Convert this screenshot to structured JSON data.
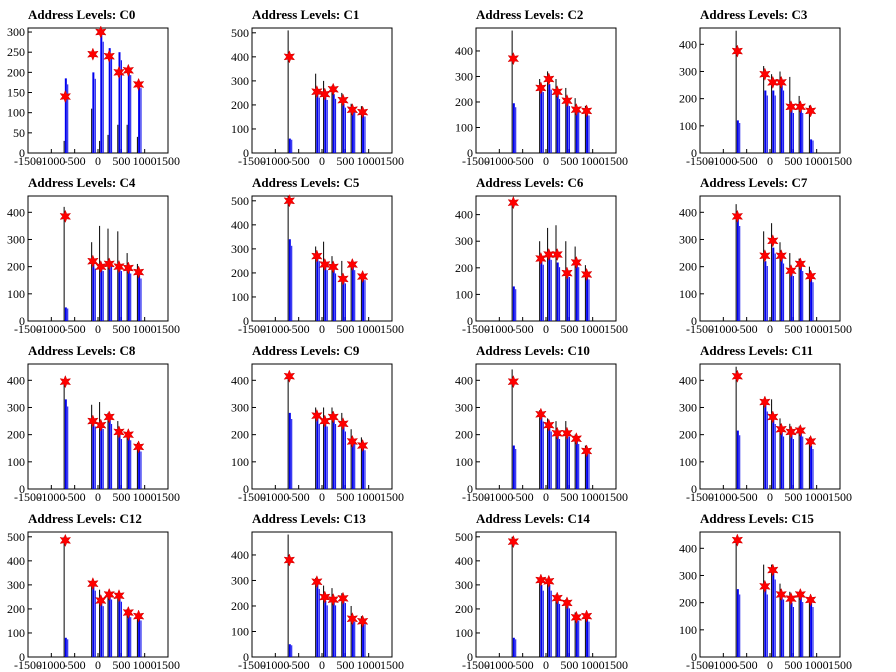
{
  "chart_data": [
    {
      "type": "histogram",
      "title": "Address Levels: C0",
      "xlim": [
        -1500,
        1500
      ],
      "ylim": [
        0,
        310
      ],
      "xticks": [
        -1500,
        -1000,
        -500,
        0,
        500,
        1000,
        1500
      ],
      "yticks": [
        0,
        50,
        100,
        150,
        200,
        250,
        300
      ],
      "peaks": [
        {
          "x": -700,
          "blue": 185,
          "black": 30,
          "marker": 140
        },
        {
          "x": -110,
          "blue": 200,
          "black": 110,
          "marker": 245
        },
        {
          "x": 60,
          "blue": 300,
          "black": 30,
          "marker": 300
        },
        {
          "x": 240,
          "blue": 260,
          "black": 45,
          "marker": 240
        },
        {
          "x": 450,
          "blue": 250,
          "black": 70,
          "marker": 200
        },
        {
          "x": 650,
          "blue": 210,
          "black": 70,
          "marker": 205
        },
        {
          "x": 870,
          "blue": 175,
          "black": 40,
          "marker": 170
        }
      ]
    },
    {
      "type": "histogram",
      "title": "Address Levels: C1",
      "xlim": [
        -1500,
        1500
      ],
      "ylim": [
        0,
        520
      ],
      "xticks": [
        -1500,
        -1000,
        -500,
        0,
        500,
        1000,
        1500
      ],
      "yticks": [
        0,
        100,
        200,
        300,
        400,
        500
      ],
      "peaks": [
        {
          "x": -700,
          "blue": 60,
          "black": 510,
          "marker": 400
        },
        {
          "x": -110,
          "blue": 250,
          "black": 330,
          "marker": 255
        },
        {
          "x": 60,
          "blue": 240,
          "black": 300,
          "marker": 245
        },
        {
          "x": 240,
          "blue": 245,
          "black": 280,
          "marker": 265
        },
        {
          "x": 450,
          "blue": 205,
          "black": 250,
          "marker": 220
        },
        {
          "x": 650,
          "blue": 190,
          "black": 205,
          "marker": 180
        },
        {
          "x": 870,
          "blue": 165,
          "black": 195,
          "marker": 170
        }
      ]
    },
    {
      "type": "histogram",
      "title": "Address Levels: C2",
      "xlim": [
        -1500,
        1500
      ],
      "ylim": [
        0,
        490
      ],
      "xticks": [
        -1500,
        -1000,
        -500,
        0,
        500,
        1000,
        1500
      ],
      "yticks": [
        0,
        100,
        200,
        300,
        400
      ],
      "peaks": [
        {
          "x": -700,
          "blue": 195,
          "black": 480,
          "marker": 370
        },
        {
          "x": -110,
          "blue": 260,
          "black": 290,
          "marker": 255
        },
        {
          "x": 60,
          "blue": 270,
          "black": 320,
          "marker": 290
        },
        {
          "x": 240,
          "blue": 230,
          "black": 290,
          "marker": 240
        },
        {
          "x": 450,
          "blue": 200,
          "black": 255,
          "marker": 205
        },
        {
          "x": 650,
          "blue": 180,
          "black": 215,
          "marker": 170
        },
        {
          "x": 870,
          "blue": 160,
          "black": 185,
          "marker": 165
        }
      ]
    },
    {
      "type": "histogram",
      "title": "Address Levels: C3",
      "xlim": [
        -1500,
        1500
      ],
      "ylim": [
        0,
        460
      ],
      "xticks": [
        -1500,
        -1000,
        -500,
        0,
        500,
        1000,
        1500
      ],
      "yticks": [
        0,
        100,
        200,
        300,
        400
      ],
      "peaks": [
        {
          "x": -700,
          "blue": 120,
          "black": 450,
          "marker": 375
        },
        {
          "x": -110,
          "blue": 230,
          "black": 320,
          "marker": 290
        },
        {
          "x": 60,
          "blue": 230,
          "black": 290,
          "marker": 260
        },
        {
          "x": 240,
          "blue": 250,
          "black": 300,
          "marker": 260
        },
        {
          "x": 450,
          "blue": 160,
          "black": 280,
          "marker": 170
        },
        {
          "x": 650,
          "blue": 160,
          "black": 210,
          "marker": 170
        },
        {
          "x": 870,
          "blue": 50,
          "black": 175,
          "marker": 155
        }
      ]
    },
    {
      "type": "histogram",
      "title": "Address Levels: C4",
      "xlim": [
        -1500,
        1500
      ],
      "ylim": [
        0,
        460
      ],
      "xticks": [
        -1500,
        -1000,
        -500,
        0,
        500,
        1000,
        1500
      ],
      "yticks": [
        0,
        100,
        200,
        300,
        400
      ],
      "peaks": [
        {
          "x": -700,
          "blue": 50,
          "black": 420,
          "marker": 385
        },
        {
          "x": -110,
          "blue": 210,
          "black": 290,
          "marker": 220
        },
        {
          "x": 60,
          "blue": 200,
          "black": 350,
          "marker": 200
        },
        {
          "x": 240,
          "blue": 220,
          "black": 340,
          "marker": 210
        },
        {
          "x": 450,
          "blue": 200,
          "black": 330,
          "marker": 200
        },
        {
          "x": 650,
          "blue": 190,
          "black": 250,
          "marker": 195
        },
        {
          "x": 870,
          "blue": 170,
          "black": 210,
          "marker": 180
        }
      ]
    },
    {
      "type": "histogram",
      "title": "Address Levels: C5",
      "xlim": [
        -1500,
        1500
      ],
      "ylim": [
        0,
        520
      ],
      "xticks": [
        -1500,
        -1000,
        -500,
        0,
        500,
        1000,
        1500
      ],
      "yticks": [
        0,
        100,
        200,
        300,
        400,
        500
      ],
      "peaks": [
        {
          "x": -700,
          "blue": 340,
          "black": 520,
          "marker": 500
        },
        {
          "x": -110,
          "blue": 270,
          "black": 310,
          "marker": 270
        },
        {
          "x": 60,
          "blue": 230,
          "black": 330,
          "marker": 235
        },
        {
          "x": 240,
          "blue": 215,
          "black": 270,
          "marker": 225
        },
        {
          "x": 450,
          "blue": 170,
          "black": 250,
          "marker": 175
        },
        {
          "x": 650,
          "blue": 230,
          "black": 240,
          "marker": 235
        },
        {
          "x": 870,
          "blue": 185,
          "black": 195,
          "marker": 185
        }
      ]
    },
    {
      "type": "histogram",
      "title": "Address Levels: C6",
      "xlim": [
        -1500,
        1500
      ],
      "ylim": [
        0,
        470
      ],
      "xticks": [
        -1500,
        -1000,
        -500,
        0,
        500,
        1000,
        1500
      ],
      "yticks": [
        0,
        100,
        200,
        300,
        400
      ],
      "peaks": [
        {
          "x": -700,
          "blue": 130,
          "black": 450,
          "marker": 445
        },
        {
          "x": -110,
          "blue": 230,
          "black": 300,
          "marker": 235
        },
        {
          "x": 60,
          "blue": 250,
          "black": 350,
          "marker": 250
        },
        {
          "x": 240,
          "blue": 220,
          "black": 360,
          "marker": 250
        },
        {
          "x": 450,
          "blue": 180,
          "black": 300,
          "marker": 180
        },
        {
          "x": 650,
          "blue": 220,
          "black": 280,
          "marker": 220
        },
        {
          "x": 870,
          "blue": 170,
          "black": 210,
          "marker": 175
        }
      ]
    },
    {
      "type": "histogram",
      "title": "Address Levels: C7",
      "xlim": [
        -1500,
        1500
      ],
      "ylim": [
        0,
        460
      ],
      "xticks": [
        -1500,
        -1000,
        -500,
        0,
        500,
        1000,
        1500
      ],
      "yticks": [
        0,
        100,
        200,
        300,
        400
      ],
      "peaks": [
        {
          "x": -700,
          "blue": 380,
          "black": 430,
          "marker": 385
        },
        {
          "x": -110,
          "blue": 220,
          "black": 330,
          "marker": 240
        },
        {
          "x": 60,
          "blue": 270,
          "black": 360,
          "marker": 295
        },
        {
          "x": 240,
          "blue": 230,
          "black": 290,
          "marker": 240
        },
        {
          "x": 450,
          "blue": 180,
          "black": 250,
          "marker": 185
        },
        {
          "x": 650,
          "blue": 200,
          "black": 230,
          "marker": 210
        },
        {
          "x": 870,
          "blue": 155,
          "black": 200,
          "marker": 165
        }
      ]
    },
    {
      "type": "histogram",
      "title": "Address Levels: C8",
      "xlim": [
        -1500,
        1500
      ],
      "ylim": [
        0,
        460
      ],
      "xticks": [
        -1500,
        -1000,
        -500,
        0,
        500,
        1000,
        1500
      ],
      "yticks": [
        0,
        100,
        200,
        300,
        400
      ],
      "peaks": [
        {
          "x": -700,
          "blue": 330,
          "black": 400,
          "marker": 395
        },
        {
          "x": -110,
          "blue": 250,
          "black": 310,
          "marker": 250
        },
        {
          "x": 60,
          "blue": 240,
          "black": 320,
          "marker": 235
        },
        {
          "x": 240,
          "blue": 260,
          "black": 280,
          "marker": 265
        },
        {
          "x": 450,
          "blue": 200,
          "black": 250,
          "marker": 210
        },
        {
          "x": 650,
          "blue": 195,
          "black": 205,
          "marker": 200
        },
        {
          "x": 870,
          "blue": 150,
          "black": 170,
          "marker": 155
        }
      ]
    },
    {
      "type": "histogram",
      "title": "Address Levels: C9",
      "xlim": [
        -1500,
        1500
      ],
      "ylim": [
        0,
        460
      ],
      "xticks": [
        -1500,
        -1000,
        -500,
        0,
        500,
        1000,
        1500
      ],
      "yticks": [
        0,
        100,
        200,
        300,
        400
      ],
      "peaks": [
        {
          "x": -700,
          "blue": 280,
          "black": 420,
          "marker": 415
        },
        {
          "x": -110,
          "blue": 260,
          "black": 300,
          "marker": 270
        },
        {
          "x": 60,
          "blue": 250,
          "black": 300,
          "marker": 250
        },
        {
          "x": 240,
          "blue": 260,
          "black": 300,
          "marker": 265
        },
        {
          "x": 450,
          "blue": 230,
          "black": 280,
          "marker": 240
        },
        {
          "x": 650,
          "blue": 180,
          "black": 220,
          "marker": 175
        },
        {
          "x": 870,
          "blue": 155,
          "black": 190,
          "marker": 160
        }
      ]
    },
    {
      "type": "histogram",
      "title": "Address Levels: C10",
      "xlim": [
        -1500,
        1500
      ],
      "ylim": [
        0,
        460
      ],
      "xticks": [
        -1500,
        -1000,
        -500,
        0,
        500,
        1000,
        1500
      ],
      "yticks": [
        0,
        100,
        200,
        300,
        400
      ],
      "peaks": [
        {
          "x": -700,
          "blue": 160,
          "black": 440,
          "marker": 395
        },
        {
          "x": -110,
          "blue": 270,
          "black": 290,
          "marker": 275
        },
        {
          "x": 60,
          "blue": 230,
          "black": 260,
          "marker": 235
        },
        {
          "x": 240,
          "blue": 200,
          "black": 250,
          "marker": 205
        },
        {
          "x": 450,
          "blue": 210,
          "black": 250,
          "marker": 205
        },
        {
          "x": 650,
          "blue": 180,
          "black": 200,
          "marker": 185
        },
        {
          "x": 870,
          "blue": 140,
          "black": 160,
          "marker": 140
        }
      ]
    },
    {
      "type": "histogram",
      "title": "Address Levels: C11",
      "xlim": [
        -1500,
        1500
      ],
      "ylim": [
        0,
        460
      ],
      "xticks": [
        -1500,
        -1000,
        -500,
        0,
        500,
        1000,
        1500
      ],
      "yticks": [
        0,
        100,
        200,
        300,
        400
      ],
      "peaks": [
        {
          "x": -700,
          "blue": 215,
          "black": 450,
          "marker": 415
        },
        {
          "x": -110,
          "blue": 310,
          "black": 330,
          "marker": 320
        },
        {
          "x": 60,
          "blue": 260,
          "black": 330,
          "marker": 265
        },
        {
          "x": 240,
          "blue": 210,
          "black": 260,
          "marker": 220
        },
        {
          "x": 450,
          "blue": 200,
          "black": 240,
          "marker": 210
        },
        {
          "x": 650,
          "blue": 210,
          "black": 230,
          "marker": 215
        },
        {
          "x": 870,
          "blue": 160,
          "black": 190,
          "marker": 175
        }
      ]
    },
    {
      "type": "histogram",
      "title": "Address Levels: C12",
      "xlim": [
        -1500,
        1500
      ],
      "ylim": [
        0,
        520
      ],
      "xticks": [
        -1500,
        -1000,
        -500,
        0,
        500,
        1000,
        1500
      ],
      "yticks": [
        0,
        100,
        200,
        300,
        400,
        500
      ],
      "peaks": [
        {
          "x": -700,
          "blue": 80,
          "black": 500,
          "marker": 485
        },
        {
          "x": -110,
          "blue": 300,
          "black": 310,
          "marker": 305
        },
        {
          "x": 60,
          "blue": 230,
          "black": 280,
          "marker": 235
        },
        {
          "x": 240,
          "blue": 260,
          "black": 270,
          "marker": 260
        },
        {
          "x": 450,
          "blue": 250,
          "black": 260,
          "marker": 255
        },
        {
          "x": 650,
          "blue": 180,
          "black": 200,
          "marker": 185
        },
        {
          "x": 870,
          "blue": 165,
          "black": 180,
          "marker": 170
        }
      ]
    },
    {
      "type": "histogram",
      "title": "Address Levels: C13",
      "xlim": [
        -1500,
        1500
      ],
      "ylim": [
        0,
        490
      ],
      "xticks": [
        -1500,
        -1000,
        -500,
        0,
        500,
        1000,
        1500
      ],
      "yticks": [
        0,
        100,
        200,
        300,
        400
      ],
      "peaks": [
        {
          "x": -700,
          "blue": 50,
          "black": 480,
          "marker": 380
        },
        {
          "x": -110,
          "blue": 290,
          "black": 310,
          "marker": 295
        },
        {
          "x": 60,
          "blue": 220,
          "black": 280,
          "marker": 235
        },
        {
          "x": 240,
          "blue": 220,
          "black": 270,
          "marker": 225
        },
        {
          "x": 450,
          "blue": 230,
          "black": 250,
          "marker": 230
        },
        {
          "x": 650,
          "blue": 150,
          "black": 200,
          "marker": 150
        },
        {
          "x": 870,
          "blue": 140,
          "black": 160,
          "marker": 140
        }
      ]
    },
    {
      "type": "histogram",
      "title": "Address Levels: C14",
      "xlim": [
        -1500,
        1500
      ],
      "ylim": [
        0,
        520
      ],
      "xticks": [
        -1500,
        -1000,
        -500,
        0,
        500,
        1000,
        1500
      ],
      "yticks": [
        0,
        100,
        200,
        300,
        400,
        500
      ],
      "peaks": [
        {
          "x": -700,
          "blue": 80,
          "black": 500,
          "marker": 480
        },
        {
          "x": -110,
          "blue": 300,
          "black": 330,
          "marker": 320
        },
        {
          "x": 60,
          "blue": 300,
          "black": 320,
          "marker": 315
        },
        {
          "x": 240,
          "blue": 240,
          "black": 260,
          "marker": 245
        },
        {
          "x": 450,
          "blue": 220,
          "black": 240,
          "marker": 225
        },
        {
          "x": 650,
          "blue": 165,
          "black": 185,
          "marker": 165
        },
        {
          "x": 870,
          "blue": 160,
          "black": 175,
          "marker": 170
        }
      ]
    },
    {
      "type": "histogram",
      "title": "Address Levels: C15",
      "xlim": [
        -1500,
        1500
      ],
      "ylim": [
        0,
        460
      ],
      "xticks": [
        -1500,
        -1000,
        -500,
        0,
        500,
        1000,
        1500
      ],
      "yticks": [
        0,
        100,
        200,
        300,
        400
      ],
      "peaks": [
        {
          "x": -700,
          "blue": 250,
          "black": 440,
          "marker": 430
        },
        {
          "x": -110,
          "blue": 250,
          "black": 340,
          "marker": 260
        },
        {
          "x": 60,
          "blue": 310,
          "black": 340,
          "marker": 320
        },
        {
          "x": 240,
          "blue": 230,
          "black": 270,
          "marker": 230
        },
        {
          "x": 450,
          "blue": 200,
          "black": 240,
          "marker": 215
        },
        {
          "x": 650,
          "blue": 220,
          "black": 240,
          "marker": 230
        },
        {
          "x": 870,
          "blue": 200,
          "black": 220,
          "marker": 210
        }
      ]
    }
  ],
  "colors": {
    "blue": "#0000ee",
    "black": "#000000",
    "marker": "#ff0000",
    "frame": "#000000"
  }
}
